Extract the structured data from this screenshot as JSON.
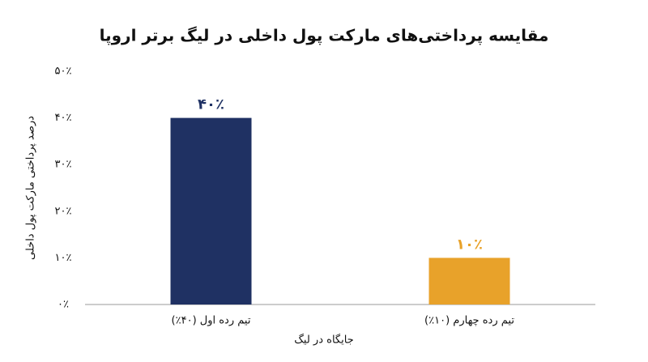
{
  "chart_data": {
    "type": "bar",
    "title": "مقایسه پرداختی‌های مارکت پول داخلی در لیگ برتر اروپا",
    "x_label": "جایگاه در لیگ",
    "y_label": "درصد پرداختی مارکت پول داخلی",
    "categories": [
      "تیم رده اول (۴۰٪)",
      "تیم رده چهارم (۱۰٪)"
    ],
    "values": [
      40,
      10
    ],
    "value_labels": [
      "۴۰٪",
      "۱۰٪"
    ],
    "colors": [
      "#1f3163",
      "#e8a22a"
    ],
    "ylim": [
      0,
      50
    ],
    "yticks": [
      {
        "value": 0,
        "label": "۰٪"
      },
      {
        "value": 10,
        "label": "۱۰٪"
      },
      {
        "value": 20,
        "label": "۲۰٪"
      },
      {
        "value": 30,
        "label": "۳۰٪"
      },
      {
        "value": 40,
        "label": "۴۰٪"
      },
      {
        "value": 50,
        "label": "۵۰٪"
      }
    ],
    "grid": false
  }
}
